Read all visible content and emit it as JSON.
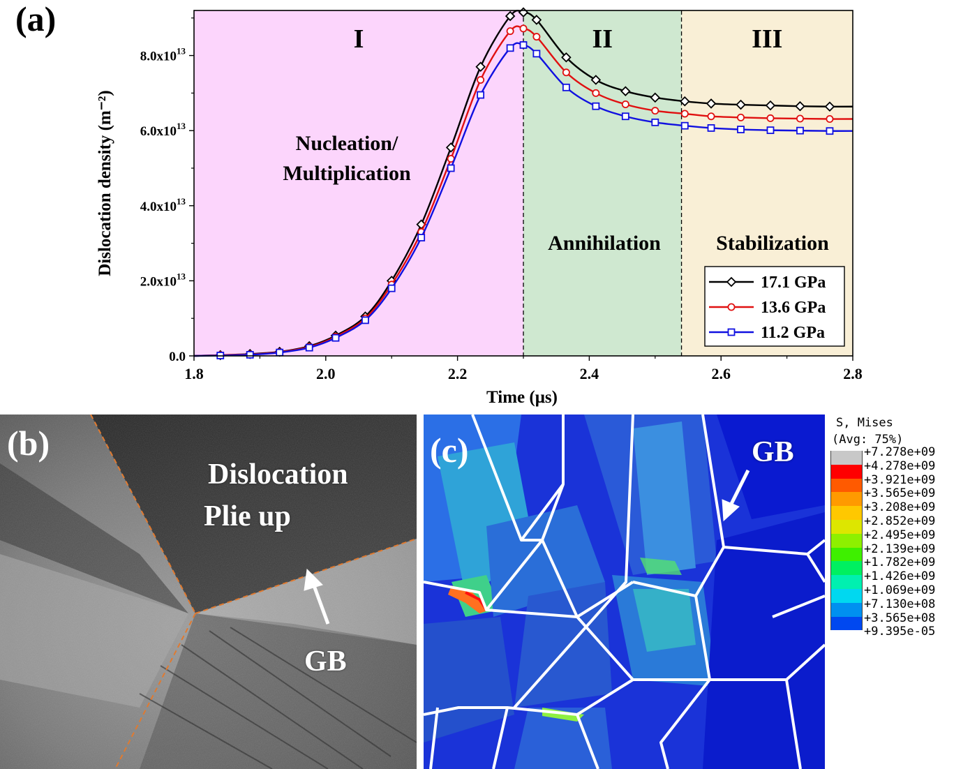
{
  "figure": {
    "panel_labels": [
      "(a)",
      "(b)",
      "(c)"
    ]
  },
  "chart_data": {
    "type": "line",
    "xlabel": "Time (μs)",
    "ylabel": "Dislocation  density (m⁻²)",
    "xlim": [
      1.8,
      2.8
    ],
    "ylim": [
      0,
      92000000000000.0
    ],
    "xticks": [
      1.8,
      2.0,
      2.2,
      2.4,
      2.6,
      2.8
    ],
    "xtick_labels": [
      "1.8",
      "2.0",
      "2.2",
      "2.4",
      "2.6",
      "2.8"
    ],
    "yticks": [
      0,
      20000000000000.0,
      40000000000000.0,
      60000000000000.0,
      80000000000000.0
    ],
    "ytick_labels": [
      {
        "base": "0.0",
        "exp": ""
      },
      {
        "base": "2.0x10",
        "exp": "13"
      },
      {
        "base": "4.0x10",
        "exp": "13"
      },
      {
        "base": "6.0x10",
        "exp": "13"
      },
      {
        "base": "8.0x10",
        "exp": "13"
      }
    ],
    "regions": [
      {
        "label": "I",
        "x_start": 1.8,
        "x_end": 2.3,
        "color": "#fcd5fc",
        "caption": [
          "Nucleation/",
          "Multiplication"
        ]
      },
      {
        "label": "II",
        "x_start": 2.3,
        "x_end": 2.54,
        "color": "#cfe8d0",
        "caption": [
          "Annihilation"
        ]
      },
      {
        "label": "III",
        "x_start": 2.54,
        "x_end": 2.8,
        "color": "#f9efd6",
        "caption": [
          "Stabilization"
        ]
      }
    ],
    "legend": "bottom-right",
    "series": [
      {
        "name": "17.1 GPa",
        "color": "#000000",
        "marker": "diamond",
        "x": [
          1.84,
          1.885,
          1.93,
          1.975,
          2.015,
          2.06,
          2.1,
          2.145,
          2.19,
          2.235,
          2.28,
          2.3,
          2.32,
          2.365,
          2.41,
          2.455,
          2.5,
          2.545,
          2.585,
          2.63,
          2.675,
          2.72,
          2.765
        ],
        "y": [
          200000000000.0,
          500000000000.0,
          1100000000000.0,
          2600000000000.0,
          5400000000000.0,
          10500000000000.0,
          20000000000000.0,
          35000000000000.0,
          55500000000000.0,
          77000000000000.0,
          90500000000000.0,
          91500000000000.0,
          89500000000000.0,
          79500000000000.0,
          73500000000000.0,
          70500000000000.0,
          68800000000000.0,
          67800000000000.0,
          67200000000000.0,
          66900000000000.0,
          66700000000000.0,
          66500000000000.0,
          66400000000000.0
        ]
      },
      {
        "name": "13.6 GPa",
        "color": "#e01010",
        "marker": "circle",
        "x": [
          1.84,
          1.885,
          1.93,
          1.975,
          2.015,
          2.06,
          2.1,
          2.145,
          2.19,
          2.235,
          2.28,
          2.3,
          2.32,
          2.365,
          2.41,
          2.455,
          2.5,
          2.545,
          2.585,
          2.63,
          2.675,
          2.72,
          2.765
        ],
        "y": [
          200000000000.0,
          400000000000.0,
          1000000000000.0,
          2400000000000.0,
          5100000000000.0,
          10000000000000.0,
          19000000000000.0,
          33000000000000.0,
          52500000000000.0,
          73500000000000.0,
          86500000000000.0,
          87200000000000.0,
          85000000000000.0,
          75500000000000.0,
          70000000000000.0,
          67000000000000.0,
          65300000000000.0,
          64500000000000.0,
          63800000000000.0,
          63500000000000.0,
          63300000000000.0,
          63200000000000.0,
          63100000000000.0
        ]
      },
      {
        "name": "11.2 GPa",
        "color": "#1010e0",
        "marker": "square",
        "x": [
          1.84,
          1.885,
          1.93,
          1.975,
          2.015,
          2.06,
          2.1,
          2.145,
          2.19,
          2.235,
          2.28,
          2.3,
          2.32,
          2.365,
          2.41,
          2.455,
          2.5,
          2.545,
          2.585,
          2.63,
          2.675,
          2.72,
          2.765
        ],
        "y": [
          100000000000.0,
          300000000000.0,
          900000000000.0,
          2200000000000.0,
          4800000000000.0,
          9500000000000.0,
          18000000000000.0,
          31500000000000.0,
          50000000000000.0,
          69500000000000.0,
          82000000000000.0,
          82800000000000.0,
          80500000000000.0,
          71500000000000.0,
          66500000000000.0,
          63800000000000.0,
          62200000000000.0,
          61300000000000.0,
          60700000000000.0,
          60300000000000.0,
          60100000000000.0,
          60000000000000.0,
          59900000000000.0
        ]
      }
    ]
  },
  "panel_b": {
    "caption_lines": [
      "Dislocation",
      "Plie up"
    ],
    "gb_label": "GB"
  },
  "panel_c": {
    "gb_label": "GB",
    "legend_title_lines": [
      "S, Mises",
      "(Avg: 75%)"
    ],
    "legend_levels": [
      "+7.278e+09",
      "+4.278e+09",
      "+3.921e+09",
      "+3.565e+09",
      "+3.208e+09",
      "+2.852e+09",
      "+2.495e+09",
      "+2.139e+09",
      "+1.782e+09",
      "+1.426e+09",
      "+1.069e+09",
      "+7.130e+08",
      "+3.565e+08",
      "+9.395e-05"
    ],
    "legend_colors": [
      "#c8c8c8",
      "#ff0000",
      "#ff5a00",
      "#ff9a00",
      "#ffc800",
      "#dde600",
      "#8ef000",
      "#3ef000",
      "#00f060",
      "#00f0b0",
      "#00d8f0",
      "#0090f0",
      "#0048f0",
      "#0000f0"
    ]
  }
}
